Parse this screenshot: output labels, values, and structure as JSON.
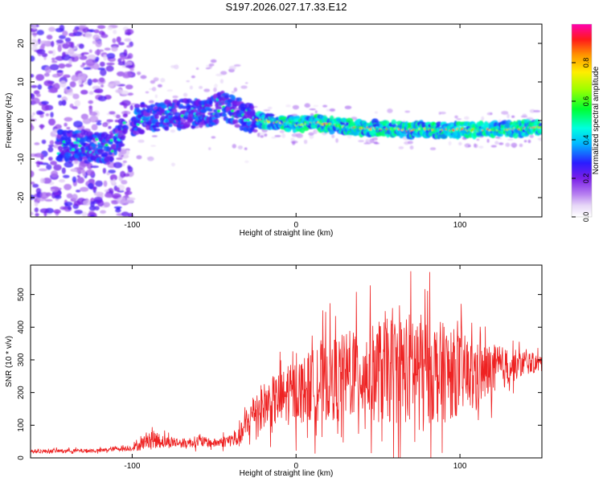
{
  "figure": {
    "title": "S197.2026.027.17.33.E12"
  },
  "chart_data": [
    {
      "type": "heatmap",
      "title": "S197.2026.027.17.33.E12",
      "xlabel": "Height of straight line (km)",
      "ylabel": "Frequency (Hz)",
      "xlim": [
        -162,
        150
      ],
      "ylim": [
        -25,
        25
      ],
      "x_ticks": [
        -100,
        0,
        100
      ],
      "y_ticks": [
        -20,
        -10,
        0,
        10,
        20
      ],
      "colorbar": {
        "label": "Normalized spectral amplitude",
        "range": [
          0.0,
          1.0
        ],
        "ticks": [
          0.0,
          0.2,
          0.4,
          0.6,
          0.8
        ]
      },
      "ridge": {
        "description_points_x": [
          -140,
          -128,
          -120,
          -112,
          -104,
          -95,
          -85,
          -75,
          -65,
          -55,
          -45,
          -35,
          -30,
          -20,
          -10,
          0,
          10,
          20,
          30,
          40,
          50,
          60,
          70,
          80,
          90,
          100,
          110,
          120,
          130,
          140,
          148
        ],
        "description_points_y": [
          -6.5,
          -6.5,
          -7.0,
          -7.0,
          -1.0,
          0.5,
          1.0,
          1.5,
          2.0,
          1.5,
          4.0,
          2.0,
          0.5,
          0.0,
          -0.5,
          -1.0,
          -0.5,
          -1.0,
          -1.5,
          -2.0,
          -2.0,
          -2.2,
          -2.5,
          -2.3,
          -2.5,
          -2.5,
          -2.4,
          -2.3,
          -2.2,
          -2.0,
          -1.8
        ]
      }
    },
    {
      "type": "line",
      "xlabel": "Height of straight line (km)",
      "ylabel": "SNR (10 * v/v)",
      "xlim": [
        -162,
        150
      ],
      "ylim": [
        0,
        590
      ],
      "x_ticks": [
        -100,
        0,
        100
      ],
      "y_ticks": [
        0,
        100,
        200,
        300,
        400,
        500
      ],
      "color": "#ee2222",
      "envelope": {
        "x": [
          -162,
          -140,
          -120,
          -110,
          -100,
          -95,
          -90,
          -80,
          -70,
          -60,
          -50,
          -40,
          -35,
          -30,
          -25,
          -20,
          -10,
          0,
          10,
          20,
          30,
          40,
          50,
          60,
          70,
          80,
          90,
          100,
          110,
          120,
          130,
          140,
          150
        ],
        "mean": [
          20,
          22,
          22,
          28,
          30,
          40,
          60,
          50,
          45,
          50,
          45,
          55,
          60,
          100,
          150,
          160,
          180,
          200,
          220,
          240,
          250,
          260,
          260,
          270,
          275,
          270,
          260,
          260,
          255,
          265,
          280,
          290,
          290
        ],
        "spread": [
          8,
          8,
          9,
          10,
          12,
          25,
          40,
          30,
          20,
          25,
          20,
          30,
          40,
          70,
          90,
          100,
          120,
          140,
          160,
          180,
          190,
          200,
          220,
          240,
          250,
          240,
          220,
          180,
          140,
          120,
          80,
          50,
          40
        ]
      }
    }
  ]
}
